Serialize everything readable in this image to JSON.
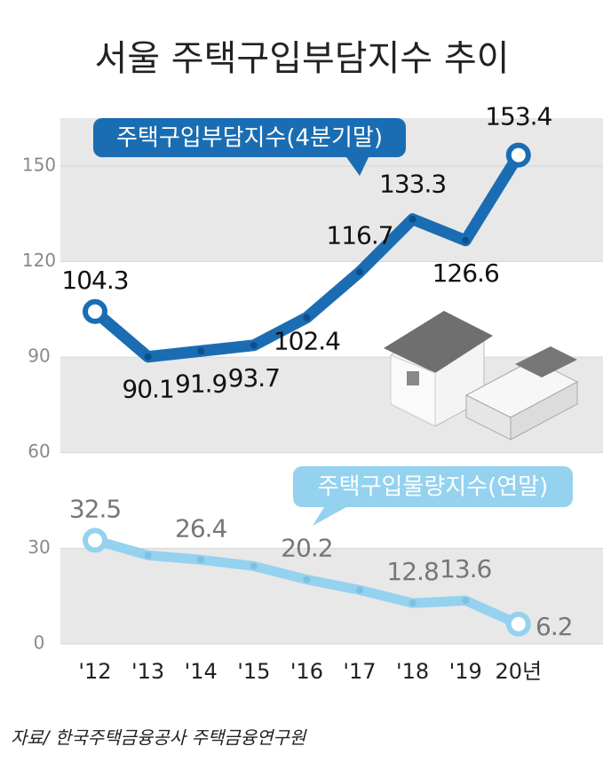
{
  "chart_data": {
    "type": "line",
    "title": "서울 주택구입부담지수 추이",
    "source": "자료/ 한국주택금융공사 주택금융연구원",
    "categories": [
      "'12",
      "'13",
      "'14",
      "'15",
      "'16",
      "'17",
      "'18",
      "'19",
      "20년"
    ],
    "series": [
      {
        "name": "주택구입부담지수(4분기말)",
        "color": "#1a6db3",
        "values": [
          104.3,
          90.1,
          91.9,
          93.7,
          102.4,
          116.7,
          133.3,
          126.6,
          153.4
        ]
      },
      {
        "name": "주택구입물량지수(연말)",
        "color": "#94d2ef",
        "values": [
          32.5,
          27.8,
          26.4,
          24.4,
          20.2,
          16.9,
          12.8,
          13.6,
          6.2
        ],
        "value_labels": [
          "32.5",
          null,
          "26.4",
          null,
          "20.2",
          null,
          "12.8",
          "13.6",
          "6.2"
        ]
      }
    ],
    "ylim": [
      0,
      165
    ],
    "yticks": [
      0,
      30,
      60,
      90,
      120,
      150
    ],
    "grid": true
  }
}
